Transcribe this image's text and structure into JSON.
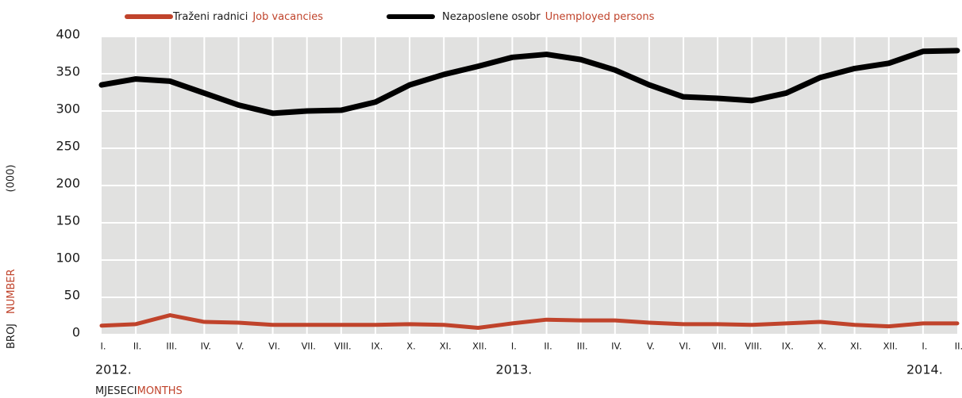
{
  "chart_data": {
    "type": "line",
    "categories": [
      "I.",
      "II.",
      "III.",
      "IV.",
      "V.",
      "VI.",
      "VII.",
      "VIII.",
      "IX.",
      "X.",
      "XI.",
      "XII.",
      "I.",
      "II.",
      "III.",
      "IV.",
      "V.",
      "VI.",
      "VII.",
      "VIII.",
      "IX.",
      "X.",
      "XI.",
      "XII.",
      "I.",
      "II."
    ],
    "x_groups": [
      {
        "label": "2012.",
        "start": 0
      },
      {
        "label": "2013.",
        "start": 12
      },
      {
        "label": "2014.",
        "start": 24
      }
    ],
    "series": [
      {
        "name": "Traženi radnici",
        "name_en": "Job vacancies",
        "color": "#c0432b",
        "values": [
          12,
          14,
          26,
          17,
          16,
          13,
          13,
          13,
          13,
          14,
          13,
          9,
          15,
          20,
          19,
          19,
          16,
          14,
          14,
          13,
          15,
          17,
          13,
          11,
          15,
          15
        ]
      },
      {
        "name": "Nezaposlene osobr",
        "name_en": "Unemployed persons",
        "color": "#000000",
        "values": [
          335,
          343,
          340,
          324,
          308,
          297,
          300,
          301,
          312,
          335,
          349,
          360,
          372,
          376,
          369,
          355,
          335,
          319,
          317,
          314,
          324,
          345,
          357,
          364,
          380,
          381
        ]
      }
    ],
    "ylim": [
      0,
      400
    ],
    "yticks": [
      0,
      50,
      100,
      150,
      200,
      250,
      300,
      350,
      400
    ],
    "grid": true,
    "y_label": "BROJ",
    "y_label_en": "NUMBER",
    "y_unit": "(000)",
    "x_label": "MJESECI",
    "x_label_en": "MONTHS"
  }
}
